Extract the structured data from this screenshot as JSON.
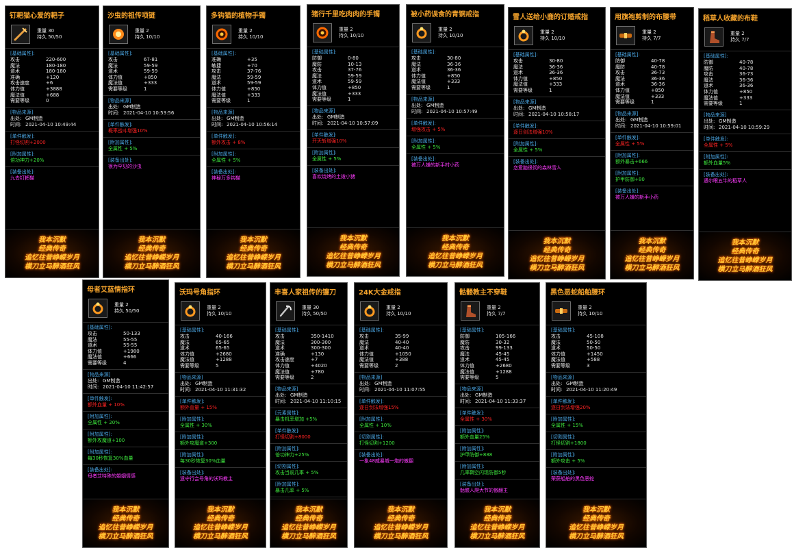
{
  "footer_lines": [
    "我本沉默",
    "经典传奇",
    "追忆往昔峥嵘岁月",
    "横刀立马醉酒狂风"
  ],
  "items": [
    {
      "title": "钉耙猫心爱的耙子",
      "icon": "rake-icon",
      "weight": "重量 30",
      "durability": "持久 50/50",
      "attrs_title": "[基础属性]:",
      "attrs": [
        [
          "攻击",
          "220-600"
        ],
        [
          "魔法",
          "180-180"
        ],
        [
          "道术",
          "180-180"
        ],
        [
          "准确",
          "+120"
        ],
        [
          "攻击速度",
          "+6"
        ],
        [
          "体力值",
          "+3888"
        ],
        [
          "魔法值",
          "+688"
        ],
        [
          "需要等级",
          "0"
        ]
      ],
      "src_title": "[物品来源]",
      "src_from": [
        "出处:",
        "GM制造"
      ],
      "src_time": [
        "时间:",
        "2021-04-10 10:49:44"
      ],
      "extras": [
        {
          "h": "[单件触发]:",
          "t": "打怪切割+2000",
          "c": "red"
        },
        {
          "h": "[附加属性]:",
          "t": "倍功神力+20%",
          "c": "grn"
        },
        {
          "h": "[装备出处]:",
          "t": "九去钉耙猫",
          "c": "mag"
        }
      ]
    },
    {
      "title": "沙虫的祖传项链",
      "icon": "necklace-icon",
      "weight": "重量 2",
      "durability": "持久 10/10",
      "attrs_title": "[基础属性]:",
      "attrs": [
        [
          "攻击",
          "67-81"
        ],
        [
          "魔法",
          "59-59"
        ],
        [
          "道术",
          "59-59"
        ],
        [
          "体力值",
          "+850"
        ],
        [
          "魔法值",
          "+333"
        ],
        [
          "需要等级",
          "1"
        ]
      ],
      "src_title": "[物品来源]",
      "src_from": [
        "出处:",
        "GM制造"
      ],
      "src_time": [
        "时间:",
        "2021-04-10 10:53:56"
      ],
      "extras": [
        {
          "h": "[单件触发]:",
          "t": "概率战斗增强10%",
          "c": "red"
        },
        {
          "h": "[附加属性]:",
          "t": "全属性 + 5%",
          "c": "grn"
        },
        {
          "h": "[装备出处]:",
          "t": "很为罕见的沙虫",
          "c": "mag"
        }
      ]
    },
    {
      "title": "多钩猫的植物手镯",
      "icon": "bracelet-icon",
      "weight": "重量 2",
      "durability": "持久 10/10",
      "attrs_title": "[基础属性]:",
      "attrs": [
        [
          "准确",
          "+35"
        ],
        [
          "敏捷",
          "+70"
        ],
        [
          "攻击",
          "37-76"
        ],
        [
          "魔法",
          "59-59"
        ],
        [
          "道术",
          "59-59"
        ],
        [
          "体力值",
          "+850"
        ],
        [
          "魔法值",
          "+333"
        ],
        [
          "需要等级",
          "1"
        ]
      ],
      "src_title": "[物品来源]",
      "src_from": [
        "出处:",
        "GM制造"
      ],
      "src_time": [
        "时间:",
        "2021-04-10 10:56:14"
      ],
      "extras": [
        {
          "h": "[单件触发]:",
          "t": "额外攻击 + 8%",
          "c": "red"
        },
        {
          "h": "[附加属性]:",
          "t": "全属性 + 5%",
          "c": "grn"
        },
        {
          "h": "[装备出处]:",
          "t": "神秘万多钩猫",
          "c": "mag"
        }
      ]
    },
    {
      "title": "猪行千里吃肉肉的手镯",
      "icon": "bracelet-icon",
      "weight": "重量 2",
      "durability": "持久 10/10",
      "attrs_title": "[基础属性]:",
      "attrs": [
        [
          "防御",
          "0-80"
        ],
        [
          "魔防",
          "10-13"
        ],
        [
          "攻击",
          "37-76"
        ],
        [
          "魔法",
          "59-59"
        ],
        [
          "道术",
          "59-59"
        ],
        [
          "体力值",
          "+850"
        ],
        [
          "魔法值",
          "+333"
        ],
        [
          "需要等级",
          "1"
        ]
      ],
      "src_title": "[物品来源]",
      "src_from": [
        "出处:",
        "GM制造"
      ],
      "src_time": [
        "时间:",
        "2021-04-10 10:57:09"
      ],
      "extras": [
        {
          "h": "[单件触发]:",
          "t": "开天斩增强10%",
          "c": "red"
        },
        {
          "h": "[附加属性]:",
          "t": "全属性 + 5%",
          "c": "grn"
        },
        {
          "h": "[装备出处]:",
          "t": "喜欢烧烤的土拨小猪",
          "c": "mag"
        }
      ]
    },
    {
      "title": "被小药误食的青铜戒指",
      "icon": "ring-icon",
      "weight": "重量 2",
      "durability": "持久 10/10",
      "attrs_title": "[基础属性]:",
      "attrs": [
        [
          "攻击",
          "30-80"
        ],
        [
          "魔法",
          "36-36"
        ],
        [
          "道术",
          "36-36"
        ],
        [
          "体力值",
          "+850"
        ],
        [
          "魔法值",
          "+333"
        ],
        [
          "需要等级",
          "1"
        ]
      ],
      "src_title": "[物品来源]",
      "src_from": [
        "出处:",
        "GM制造"
      ],
      "src_time": [
        "时间:",
        "2021-04-10 10:57:49"
      ],
      "extras": [
        {
          "h": "[单件触发]:",
          "t": "增强攻击 + 5%",
          "c": "red"
        },
        {
          "h": "[附加属性]:",
          "t": "全属性 + 5%",
          "c": "grn"
        },
        {
          "h": "[装备出处]:",
          "t": "被万人嫌的新手村小药",
          "c": "mag"
        }
      ]
    },
    {
      "title": "雪人送给小鹿的订婚戒指",
      "icon": "ring-icon",
      "weight": "重量 2",
      "durability": "持久 10/10",
      "attrs_title": "[基础属性]:",
      "attrs": [
        [
          "攻击",
          "30-80"
        ],
        [
          "魔法",
          "36-36"
        ],
        [
          "道术",
          "36-36"
        ],
        [
          "体力值",
          "+850"
        ],
        [
          "魔法值",
          "+333"
        ],
        [
          "需要等级",
          "1"
        ]
      ],
      "src_title": "[物品来源]",
      "src_from": [
        "出处:",
        "GM制造"
      ],
      "src_time": [
        "时间:",
        "2021-04-10 10:58:17"
      ],
      "extras": [
        {
          "h": "[单件触发]:",
          "t": "逐日剑法增强10%",
          "c": "red"
        },
        {
          "h": "[附加属性]:",
          "t": "全属性 + 5%",
          "c": "grn"
        },
        {
          "h": "[装备出处]:",
          "t": "恋爱脑很彻的森林雪人",
          "c": "mag"
        }
      ]
    },
    {
      "title": "用旗袍剪制的布腰带",
      "icon": "belt-icon",
      "weight": "重量 2",
      "durability": "持久 7/7",
      "attrs_title": "[基础属性]:",
      "attrs": [
        [
          "防御",
          "40-78"
        ],
        [
          "魔防",
          "40-78"
        ],
        [
          "攻击",
          "36-73"
        ],
        [
          "魔法",
          "36-36"
        ],
        [
          "道术",
          "36-36"
        ],
        [
          "体力值",
          "+850"
        ],
        [
          "魔法值",
          "+333"
        ],
        [
          "需要等级",
          "1"
        ]
      ],
      "src_title": "[物品来源]",
      "src_from": [
        "出处:",
        "GM制造"
      ],
      "src_time": [
        "时间:",
        "2021-04-10 10:59:01"
      ],
      "extras": [
        {
          "h": "[单件触发]:",
          "t": "全属性 + 5%",
          "c": "red"
        },
        {
          "h": "[附加属性]:",
          "t": "额外暴击+666",
          "c": "grn"
        },
        {
          "h": "[附加属性]:",
          "t": "护甲防御+80",
          "c": "grn"
        },
        {
          "h": "[装备出处]:",
          "t": "被万人嫌的新手小药",
          "c": "mag"
        }
      ]
    },
    {
      "title": "稻草人收藏的布鞋",
      "icon": "boots-icon",
      "weight": "重量 2",
      "durability": "持久 7/7",
      "attrs_title": "[基础属性]:",
      "attrs": [
        [
          "防御",
          "40-78"
        ],
        [
          "魔防",
          "40-78"
        ],
        [
          "攻击",
          "36-73"
        ],
        [
          "魔法",
          "36-36"
        ],
        [
          "道术",
          "36-36"
        ],
        [
          "体力值",
          "+850"
        ],
        [
          "魔法值",
          "+333"
        ],
        [
          "需要等级",
          "1"
        ]
      ],
      "src_title": "[物品来源]",
      "src_from": [
        "出处:",
        "GM制造"
      ],
      "src_time": [
        "时间:",
        "2021-04-10 10:59:29"
      ],
      "extras": [
        {
          "h": "[单件触发]:",
          "t": "全属性 + 5%",
          "c": "red"
        },
        {
          "h": "[附加属性]:",
          "t": "额外血量5%",
          "c": "grn"
        },
        {
          "h": "[装备出处]:",
          "t": "遇尔眼五牛的稻草人",
          "c": "mag"
        }
      ]
    },
    {
      "title": "母者艾蓝情指环",
      "icon": "ring-icon",
      "weight": "重量 2",
      "durability": "持久 50/50",
      "attrs_title": "[基础属性]:",
      "attrs": [
        [
          "攻击",
          "50-133"
        ],
        [
          "魔法",
          "55-55"
        ],
        [
          "道术",
          "55-55"
        ],
        [
          "体力值",
          "+1980"
        ],
        [
          "魔法值",
          "+666"
        ],
        [
          "需要等级",
          "4"
        ]
      ],
      "src_title": "[物品来源]",
      "src_from": [
        "出处:",
        "GM制造"
      ],
      "src_time": [
        "时间:",
        "2021-04-10 11:42:57"
      ],
      "extras": [
        {
          "h": "[单件触发]:",
          "t": "额外血量 + 10%",
          "c": "red"
        },
        {
          "h": "[附加属性]:",
          "t": "全属性 + 20%",
          "c": "grn"
        },
        {
          "h": "[附加属性]:",
          "t": "额外攻魔道+100",
          "c": "grn"
        },
        {
          "h": "[附加属性]:",
          "t": "每30秒恢复30%血量",
          "c": "grn"
        },
        {
          "h": "[装备出处]:",
          "t": "母者艾特殊的婚姻情感",
          "c": "mag"
        }
      ]
    },
    {
      "title": "沃玛号角指环",
      "icon": "ring-icon",
      "weight": "重量 2",
      "durability": "持久 10/10",
      "attrs_title": "[基础属性]:",
      "attrs": [
        [
          "攻击",
          "40-166"
        ],
        [
          "魔法",
          "65-65"
        ],
        [
          "道术",
          "65-65"
        ],
        [
          "体力值",
          "+2680"
        ],
        [
          "魔法值",
          "+1288"
        ],
        [
          "需要等级",
          "5"
        ]
      ],
      "src_title": "[物品来源]",
      "src_from": [
        "出处:",
        "GM制造"
      ],
      "src_time": [
        "时间:",
        "2021-04-10 11:31:32"
      ],
      "extras": [
        {
          "h": "[单件触发]:",
          "t": "额外血量 + 15%",
          "c": "red"
        },
        {
          "h": "[附加属性]:",
          "t": "全属性 + 30%",
          "c": "grn"
        },
        {
          "h": "[附加属性]:",
          "t": "额外攻魔道+300",
          "c": "grn"
        },
        {
          "h": "[附加属性]:",
          "t": "每30秒恢复30%血量",
          "c": "grn"
        },
        {
          "h": "[装备出处]:",
          "t": "遗守行会号角的沃玛教主",
          "c": "mag"
        }
      ]
    },
    {
      "title": "丰喜人家祖传的镰刀",
      "icon": "sickle-icon",
      "weight": "重量 30",
      "durability": "持久 50/50",
      "attrs_title": "[基础属性]:",
      "attrs": [
        [
          "攻击",
          "350-1410"
        ],
        [
          "魔法",
          "300-300"
        ],
        [
          "道术",
          "300-300"
        ],
        [
          "准确",
          "+130"
        ],
        [
          "攻击速度",
          "+7"
        ],
        [
          "体力值",
          "+4020"
        ],
        [
          "魔法值",
          "+780"
        ],
        [
          "需要等级",
          "2"
        ]
      ],
      "src_title": "[物品来源]",
      "src_from": [
        "出处:",
        "GM制造"
      ],
      "src_time": [
        "时间:",
        "2021-04-10 11:10:15"
      ],
      "extras": [
        {
          "h": "[元素属性]:",
          "t": "暴击机率增加 +5%",
          "c": "grn"
        },
        {
          "h": "[单件触发]:",
          "t": "打怪切割+8000",
          "c": "red"
        },
        {
          "h": "[附加属性]:",
          "t": "倍功神力+25%",
          "c": "grn"
        },
        {
          "h": "[切割属性]:",
          "t": "攻击当前几率 + 5%",
          "c": "grn"
        },
        {
          "h": "[附加属性]:",
          "t": "暴击几率 + 5%",
          "c": "grn"
        },
        {
          "h": "[装备出处]:",
          "t": "丰喜家族的代表霸主",
          "c": "mag"
        }
      ]
    },
    {
      "title": "24K大金戒指",
      "icon": "ring-icon",
      "weight": "重量 2",
      "durability": "持久 10/10",
      "attrs_title": "[基础属性]:",
      "attrs": [
        [
          "攻击",
          "35-99"
        ],
        [
          "魔法",
          "40-40"
        ],
        [
          "道术",
          "40-40"
        ],
        [
          "体力值",
          "+1050"
        ],
        [
          "魔法值",
          "+388"
        ],
        [
          "需要等级",
          "2"
        ]
      ],
      "src_title": "[物品来源]",
      "src_from": [
        "出处:",
        "GM制造"
      ],
      "src_time": [
        "时间:",
        "2021-04-10 11:07:55"
      ],
      "extras": [
        {
          "h": "[单件触发]:",
          "t": "逐日剑法增强15%",
          "c": "red"
        },
        {
          "h": "[附加属性]:",
          "t": "全属性 + 10%",
          "c": "grn"
        },
        {
          "h": "[切割属性]:",
          "t": "打怪切割+1200",
          "c": "grn"
        },
        {
          "h": "[装备出处]:",
          "t": "一象48威暴城一炮的傲翻",
          "c": "mag"
        }
      ]
    },
    {
      "title": "骷髅教主不穿鞋",
      "icon": "boots-icon",
      "weight": "重量 2",
      "durability": "持久 7/7",
      "attrs_title": "[基础属性]:",
      "attrs": [
        [
          "防御",
          "105-166"
        ],
        [
          "魔防",
          "30-32"
        ],
        [
          "攻击",
          "99-133"
        ],
        [
          "魔法",
          "45-45"
        ],
        [
          "道术",
          "45-45"
        ],
        [
          "体力值",
          "+2680"
        ],
        [
          "魔法值",
          "+1288"
        ],
        [
          "需要等级",
          "5"
        ]
      ],
      "src_title": "[物品来源]",
      "src_from": [
        "出处:",
        "GM制造"
      ],
      "src_time": [
        "时间:",
        "2021-04-10 11:33:37"
      ],
      "extras": [
        {
          "h": "[单件触发]:",
          "t": "全属性 + 30%",
          "c": "red"
        },
        {
          "h": "[附加属性]:",
          "t": "额外血量25%",
          "c": "grn"
        },
        {
          "h": "[附加属性]:",
          "t": "护甲防御+888",
          "c": "grn"
        },
        {
          "h": "[附加属性]:",
          "t": "几率鞘空闪现防御5秒",
          "c": "grn"
        },
        {
          "h": "[装备出处]:",
          "t": "骷髅人爬大节的傲翻主",
          "c": "mag"
        }
      ]
    },
    {
      "title": "黑色恶蛇船舶腰环",
      "icon": "belt-icon",
      "weight": "重量 2",
      "durability": "持久 10/10",
      "attrs_title": "[基础属性]:",
      "attrs": [
        [
          "攻击",
          "45-108"
        ],
        [
          "魔法",
          "50-50"
        ],
        [
          "道术",
          "50-50"
        ],
        [
          "体力值",
          "+1450"
        ],
        [
          "魔法值",
          "+588"
        ],
        [
          "需要等级",
          "3"
        ]
      ],
      "src_title": "[物品来源]",
      "src_from": [
        "出处:",
        "GM制造"
      ],
      "src_time": [
        "时间:",
        "2021-04-10 11:20:49"
      ],
      "extras": [
        {
          "h": "[单件触发]:",
          "t": "逐日剑法增强20%",
          "c": "red"
        },
        {
          "h": "[附加属性]:",
          "t": "全属性 + 15%",
          "c": "grn"
        },
        {
          "h": "[切割属性]:",
          "t": "打怪切割+1800",
          "c": "grn"
        },
        {
          "h": "[附加属性]:",
          "t": "额外攻击 + 5%",
          "c": "grn"
        },
        {
          "h": "[装备出处]:",
          "t": "荣获船舶的黑色恶蛇",
          "c": "mag"
        }
      ]
    }
  ]
}
